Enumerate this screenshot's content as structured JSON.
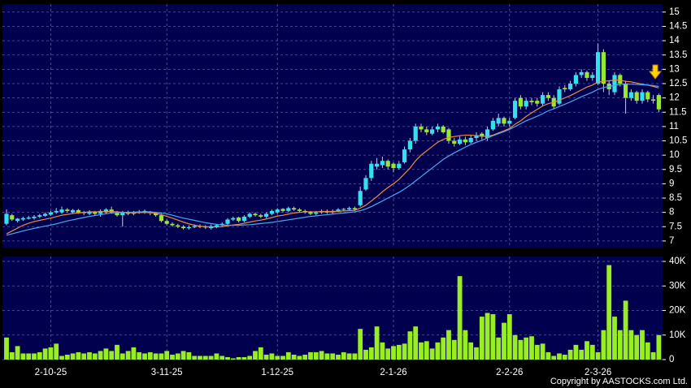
{
  "chart_data": [
    {
      "type": "candlestick",
      "ylim": [
        6.77,
        15.28
      ],
      "yticks": [
        7,
        7.5,
        8,
        8.5,
        9,
        9.5,
        10,
        10.5,
        11,
        11.5,
        12,
        12.5,
        13,
        13.5,
        14,
        14.5,
        15
      ],
      "grid": true,
      "up_color": "#33e0f0",
      "down_color": "#99e633",
      "open": [
        7.6,
        7.9,
        7.7,
        7.75,
        7.78,
        7.8,
        7.85,
        7.88,
        7.92,
        8.0,
        8.0,
        8.1,
        8.0,
        8.08,
        8.0,
        7.95,
        8.02,
        7.95,
        8.0,
        8.1,
        8.0,
        7.9,
        8.02,
        7.95,
        8.0,
        8.05,
        8.0,
        7.98,
        7.9,
        7.7,
        7.6,
        7.55,
        7.5,
        7.45,
        7.48,
        7.52,
        7.5,
        7.45,
        7.5,
        7.55,
        7.6,
        7.75,
        7.82,
        7.7,
        7.85,
        7.95,
        7.9,
        7.85,
        7.95,
        8.0,
        8.12,
        8.05,
        8.15,
        8.1,
        8.05,
        8.02,
        7.95,
        8.0,
        8.05,
        8.0,
        8.05,
        8.12,
        8.1,
        8.15,
        8.25,
        8.8,
        9.2,
        9.6,
        9.65,
        9.8,
        9.7,
        9.55,
        9.75,
        10.2,
        10.5,
        11.0,
        10.9,
        10.75,
        10.9,
        11.0,
        10.9,
        10.5,
        10.4,
        10.55,
        10.45,
        10.6,
        10.75,
        10.6,
        10.9,
        11.1,
        11.3,
        11.1,
        11.3,
        12.0,
        11.7,
        11.9,
        11.9,
        11.8,
        12.1,
        12.0,
        11.8,
        12.35,
        12.3,
        12.5,
        12.8,
        12.9,
        12.7,
        12.5,
        13.6,
        12.5,
        12.2,
        12.8,
        12.5,
        12.0,
        12.2,
        11.9,
        12.2,
        11.95,
        12.1
      ],
      "high": [
        8.1,
        7.95,
        7.8,
        7.85,
        7.88,
        7.9,
        7.95,
        8.0,
        8.05,
        8.15,
        8.2,
        8.15,
        8.12,
        8.12,
        8.05,
        8.08,
        8.05,
        8.1,
        8.15,
        8.2,
        8.05,
        8.05,
        8.06,
        8.05,
        8.08,
        8.1,
        8.05,
        8.0,
        7.95,
        7.75,
        7.65,
        7.6,
        7.55,
        7.55,
        7.58,
        7.58,
        7.55,
        7.58,
        7.6,
        7.65,
        7.8,
        7.85,
        7.85,
        7.9,
        8.0,
        8.0,
        7.95,
        8.0,
        8.1,
        8.15,
        8.15,
        8.2,
        8.2,
        8.15,
        8.1,
        8.05,
        8.05,
        8.1,
        8.1,
        8.1,
        8.15,
        8.15,
        8.2,
        8.2,
        8.9,
        9.3,
        9.8,
        9.9,
        9.95,
        9.85,
        9.75,
        9.8,
        10.3,
        10.6,
        11.1,
        11.1,
        11.0,
        11.0,
        11.1,
        11.05,
        10.95,
        10.6,
        10.65,
        10.65,
        10.7,
        10.8,
        10.8,
        11.0,
        11.3,
        11.45,
        11.35,
        11.3,
        12.0,
        12.1,
        12.0,
        12.0,
        12.0,
        12.2,
        12.2,
        12.1,
        12.4,
        12.45,
        12.6,
        12.9,
        13.0,
        12.95,
        12.9,
        13.9,
        13.7,
        12.6,
        12.9,
        12.85,
        12.6,
        12.3,
        12.25,
        12.3,
        12.25,
        12.1,
        12.15
      ],
      "low": [
        7.55,
        7.7,
        7.65,
        7.7,
        7.75,
        7.75,
        7.8,
        7.85,
        7.88,
        7.95,
        7.95,
        8.0,
        7.95,
        7.95,
        7.9,
        7.9,
        7.9,
        7.85,
        7.95,
        7.95,
        7.85,
        7.5,
        7.9,
        7.9,
        7.95,
        7.95,
        7.9,
        7.85,
        7.65,
        7.55,
        7.5,
        7.45,
        7.4,
        7.4,
        7.45,
        7.45,
        7.42,
        7.4,
        7.45,
        7.5,
        7.55,
        7.7,
        7.65,
        7.65,
        7.8,
        7.85,
        7.8,
        7.8,
        7.9,
        7.95,
        8.0,
        8.0,
        8.05,
        8.0,
        7.95,
        7.9,
        7.9,
        7.95,
        7.95,
        7.95,
        8.0,
        8.05,
        8.05,
        8.05,
        8.2,
        8.75,
        9.1,
        9.5,
        9.55,
        9.5,
        9.4,
        9.5,
        9.7,
        10.1,
        10.4,
        10.8,
        10.7,
        10.7,
        10.8,
        10.75,
        10.4,
        10.3,
        10.35,
        10.35,
        10.4,
        10.5,
        10.55,
        10.5,
        10.85,
        11.0,
        11.0,
        11.0,
        11.25,
        11.6,
        11.6,
        11.75,
        11.7,
        11.7,
        11.9,
        11.6,
        11.75,
        12.2,
        12.25,
        12.4,
        12.7,
        12.6,
        12.6,
        12.45,
        12.2,
        12.1,
        12.1,
        12.4,
        11.45,
        11.9,
        11.8,
        11.8,
        11.85,
        11.8,
        11.5
      ],
      "close": [
        7.95,
        7.75,
        7.78,
        7.8,
        7.82,
        7.85,
        7.9,
        7.95,
        8.0,
        8.05,
        8.1,
        8.05,
        8.08,
        8.0,
        7.98,
        8.02,
        7.95,
        8.05,
        8.1,
        8.0,
        7.9,
        8.0,
        7.95,
        8.0,
        8.02,
        8.0,
        7.98,
        7.9,
        7.7,
        7.6,
        7.55,
        7.5,
        7.45,
        7.48,
        7.52,
        7.5,
        7.48,
        7.52,
        7.55,
        7.6,
        7.75,
        7.8,
        7.7,
        7.85,
        7.95,
        7.9,
        7.85,
        7.95,
        8.05,
        8.1,
        8.05,
        8.15,
        8.1,
        8.05,
        8.0,
        7.95,
        8.0,
        8.05,
        8.0,
        8.05,
        8.1,
        8.1,
        8.15,
        8.1,
        8.75,
        9.2,
        9.7,
        9.7,
        9.8,
        9.6,
        9.55,
        9.7,
        10.2,
        10.5,
        11.0,
        10.9,
        10.8,
        10.9,
        11.0,
        10.8,
        10.5,
        10.4,
        10.55,
        10.45,
        10.6,
        10.7,
        10.65,
        10.9,
        11.2,
        11.3,
        11.1,
        11.2,
        11.9,
        11.7,
        11.9,
        11.85,
        11.8,
        12.1,
        12.0,
        11.7,
        12.3,
        12.3,
        12.5,
        12.8,
        12.9,
        12.7,
        12.8,
        13.6,
        12.5,
        12.3,
        12.8,
        12.5,
        12.0,
        12.2,
        11.9,
        12.2,
        11.95,
        11.9,
        11.6
      ],
      "series": [
        {
          "color": "#f08a3c",
          "values": [
            7.25,
            7.35,
            7.45,
            7.55,
            7.62,
            7.68,
            7.72,
            7.76,
            7.8,
            7.85,
            7.9,
            7.93,
            7.96,
            7.98,
            8.0,
            8.02,
            8.02,
            8.02,
            8.03,
            8.03,
            8.02,
            8.0,
            7.99,
            7.99,
            7.99,
            8.0,
            7.99,
            7.97,
            7.92,
            7.86,
            7.8,
            7.73,
            7.66,
            7.6,
            7.55,
            7.52,
            7.5,
            7.49,
            7.49,
            7.5,
            7.53,
            7.56,
            7.58,
            7.62,
            7.66,
            7.7,
            7.73,
            7.77,
            7.82,
            7.87,
            7.9,
            7.94,
            7.98,
            8.0,
            8.02,
            8.02,
            8.02,
            8.03,
            8.03,
            8.03,
            8.04,
            8.05,
            8.06,
            8.07,
            8.15,
            8.25,
            8.4,
            8.55,
            8.72,
            8.87,
            9.0,
            9.15,
            9.35,
            9.55,
            9.8,
            10.0,
            10.15,
            10.3,
            10.45,
            10.55,
            10.62,
            10.65,
            10.68,
            10.7,
            10.7,
            10.68,
            10.66,
            10.66,
            10.7,
            10.78,
            10.85,
            10.93,
            11.08,
            11.2,
            11.35,
            11.48,
            11.6,
            11.72,
            11.8,
            11.85,
            11.92,
            12.0,
            12.08,
            12.18,
            12.28,
            12.38,
            12.45,
            12.55,
            12.58,
            12.6,
            12.62,
            12.62,
            12.58,
            12.56,
            12.52,
            12.48,
            12.45,
            12.4,
            12.35
          ]
        },
        {
          "color": "#4aa8f0",
          "values": [
            7.2,
            7.25,
            7.3,
            7.35,
            7.4,
            7.44,
            7.48,
            7.52,
            7.56,
            7.6,
            7.65,
            7.7,
            7.74,
            7.78,
            7.82,
            7.86,
            7.89,
            7.92,
            7.95,
            7.98,
            7.99,
            8.0,
            8.0,
            8.01,
            8.02,
            8.02,
            8.02,
            8.0,
            7.98,
            7.95,
            7.9,
            7.85,
            7.8,
            7.76,
            7.72,
            7.68,
            7.64,
            7.61,
            7.58,
            7.56,
            7.55,
            7.55,
            7.55,
            7.56,
            7.57,
            7.59,
            7.61,
            7.63,
            7.65,
            7.68,
            7.71,
            7.74,
            7.77,
            7.8,
            7.83,
            7.86,
            7.88,
            7.9,
            7.92,
            7.94,
            7.96,
            7.98,
            8.0,
            8.02,
            8.06,
            8.12,
            8.2,
            8.3,
            8.4,
            8.5,
            8.6,
            8.7,
            8.82,
            8.95,
            9.1,
            9.25,
            9.4,
            9.55,
            9.7,
            9.85,
            9.97,
            10.08,
            10.18,
            10.28,
            10.37,
            10.45,
            10.52,
            10.6,
            10.68,
            10.75,
            10.82,
            10.9,
            11.0,
            11.1,
            11.2,
            11.28,
            11.36,
            11.45,
            11.55,
            11.62,
            11.7,
            11.78,
            11.86,
            11.95,
            12.04,
            12.12,
            12.2,
            12.3,
            12.36,
            12.4,
            12.44,
            12.47,
            12.48,
            12.48,
            12.47,
            12.46,
            12.45,
            12.43,
            12.4
          ]
        }
      ]
    },
    {
      "type": "bar",
      "color": "#99ee22",
      "ylim": [
        0,
        42000
      ],
      "yticks": [
        0,
        {
          "value": 10000,
          "label": "10K"
        },
        {
          "value": 20000,
          "label": "20K"
        },
        {
          "value": 30000,
          "label": "30K"
        },
        {
          "value": 40000,
          "label": "40K"
        }
      ],
      "grid": true,
      "categories": [
        null,
        null,
        null,
        null,
        null,
        null,
        null,
        null,
        "2-10-25",
        null,
        null,
        null,
        null,
        null,
        null,
        null,
        null,
        null,
        null,
        null,
        null,
        null,
        null,
        null,
        null,
        null,
        null,
        null,
        null,
        "3-11-25",
        null,
        null,
        null,
        null,
        null,
        null,
        null,
        null,
        null,
        null,
        null,
        null,
        null,
        null,
        null,
        null,
        null,
        null,
        null,
        "1-12-25",
        null,
        null,
        null,
        null,
        null,
        null,
        null,
        null,
        null,
        null,
        null,
        null,
        null,
        null,
        null,
        null,
        null,
        null,
        null,
        null,
        "2-1-26",
        null,
        null,
        null,
        null,
        null,
        null,
        null,
        null,
        null,
        null,
        null,
        null,
        null,
        null,
        null,
        null,
        null,
        null,
        null,
        null,
        "2-2-26",
        null,
        null,
        null,
        null,
        null,
        null,
        null,
        null,
        null,
        null,
        null,
        null,
        null,
        null,
        null,
        "2-3-26",
        null,
        null,
        null,
        null,
        null,
        null,
        null,
        null,
        null,
        null,
        null
      ],
      "values": [
        9000,
        3000,
        5500,
        2500,
        2500,
        2500,
        3000,
        4500,
        5000,
        6500,
        1500,
        2000,
        2500,
        3000,
        2500,
        3000,
        2500,
        3500,
        4500,
        3500,
        6000,
        2500,
        3500,
        5000,
        3000,
        2500,
        3000,
        2500,
        2500,
        3500,
        2000,
        2500,
        3500,
        3000,
        1500,
        1500,
        1500,
        1500,
        2500,
        1500,
        1000,
        500,
        1000,
        1000,
        1500,
        3500,
        5000,
        2000,
        2500,
        1500,
        1500,
        3000,
        2000,
        1500,
        2000,
        3000,
        3000,
        3500,
        2500,
        2500,
        2000,
        3000,
        2500,
        2500,
        12500,
        4000,
        5000,
        13500,
        7000,
        4500,
        5500,
        6000,
        6500,
        11500,
        13500,
        7000,
        7500,
        4500,
        7000,
        9000,
        12000,
        8000,
        34000,
        12000,
        7000,
        5000,
        17500,
        19000,
        18500,
        9000,
        15000,
        18500,
        10000,
        8000,
        9000,
        9500,
        6000,
        6500,
        3000,
        1500,
        2500,
        2000,
        4000,
        6000,
        4000,
        7500,
        6000,
        3000,
        12000,
        38500,
        17500,
        12000,
        24000,
        12000,
        10000,
        12000,
        7000,
        3000,
        10000
      ]
    }
  ],
  "copyright": "Copyright by AASTOCKS.com Ltd."
}
